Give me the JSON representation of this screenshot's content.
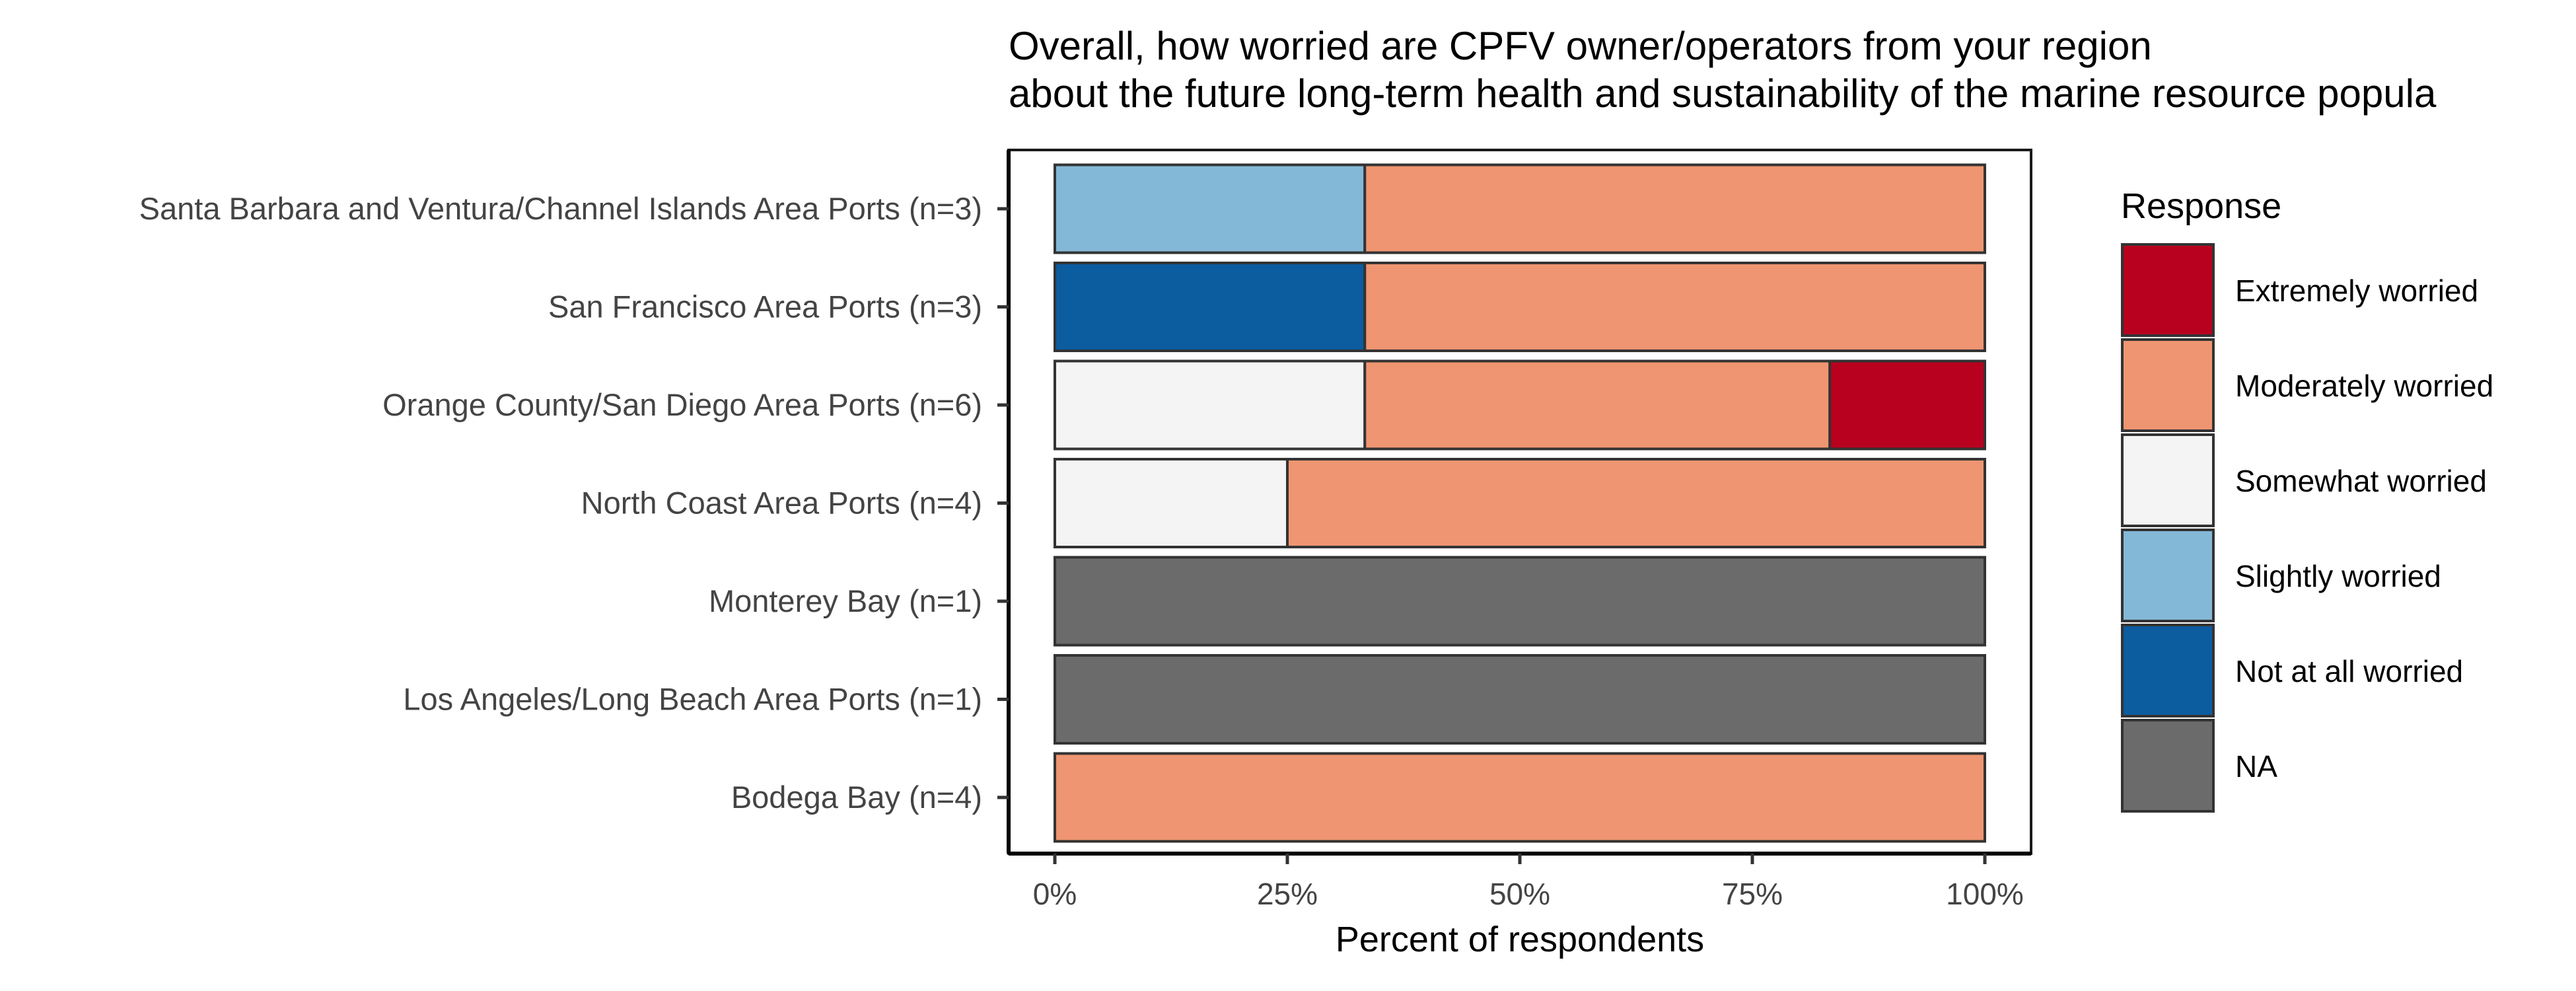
{
  "chart_data": {
    "type": "bar",
    "orientation": "horizontal",
    "stacked": true,
    "title_lines": [
      "Overall, how worried are CPFV owner/operators from your region",
      "about the future long-term health and sustainability of the marine resource popula"
    ],
    "xlabel": "Percent of respondents",
    "ylabel": "",
    "xlim": [
      0,
      1
    ],
    "x_ticks": [
      0,
      0.25,
      0.5,
      0.75,
      1
    ],
    "x_tick_labels": [
      "0%",
      "25%",
      "50%",
      "75%",
      "100%"
    ],
    "categories": [
      "Santa Barbara and Ventura/Channel Islands Area Ports (n=3)",
      "San Francisco Area Ports (n=3)",
      "Orange County/San Diego Area Ports (n=6)",
      "North Coast Area Ports (n=4)",
      "Monterey Bay (n=1)",
      "Los Angeles/Long Beach Area Ports (n=1)",
      "Bodega Bay (n=4)"
    ],
    "stack_order": [
      "Not at all worried",
      "Slightly worried",
      "Somewhat worried",
      "NA",
      "Moderately worried",
      "Extremely worried"
    ],
    "series": [
      {
        "name": "Extremely worried",
        "color": "#b8001f",
        "values": [
          0,
          0,
          0.1667,
          0,
          0,
          0,
          0
        ]
      },
      {
        "name": "Moderately worried",
        "color": "#ef9571",
        "values": [
          0.6667,
          0.6667,
          0.5,
          0.75,
          0,
          0,
          1
        ]
      },
      {
        "name": "Somewhat worried",
        "color": "#f4f4f4",
        "values": [
          0,
          0,
          0.3333,
          0.25,
          0,
          0,
          0
        ]
      },
      {
        "name": "Slightly worried",
        "color": "#84b8d7",
        "values": [
          0.3333,
          0,
          0,
          0,
          0,
          0,
          0
        ]
      },
      {
        "name": "Not at all worried",
        "color": "#0c5ca0",
        "values": [
          0,
          0.3333,
          0,
          0,
          0,
          0,
          0
        ]
      },
      {
        "name": "NA",
        "color": "#6b6b6b",
        "values": [
          0,
          0,
          0,
          0,
          1,
          1,
          0
        ]
      }
    ],
    "legend_title": "Response",
    "legend_position": "right",
    "grid": false
  }
}
